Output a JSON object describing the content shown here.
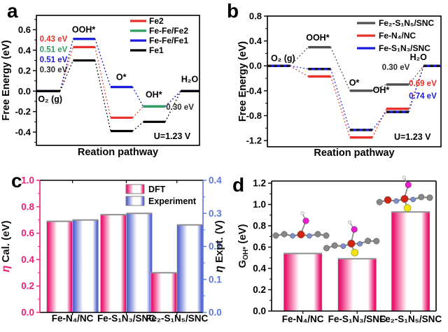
{
  "figure": {
    "panels": [
      {
        "letter": "a"
      },
      {
        "letter": "b"
      },
      {
        "letter": "c"
      },
      {
        "letter": "d"
      }
    ],
    "bar_colors": {
      "pink": "#e9166e",
      "blue": "#5565cf"
    },
    "molecule_atom_colors": {
      "carbon": "#878787",
      "iron": "#d32413",
      "nitrogen": "#7d90cc",
      "sulfur": "#f2e413",
      "oxygen": "#e322c9",
      "hydrogen": "#e8e8e8",
      "bond": "#8a8a8a"
    }
  },
  "chart_data": [
    {
      "panel": "a",
      "type": "line",
      "variant": "energy-diagram",
      "xlabel": "Reation pathway",
      "ylabel": "Free Energy (eV)",
      "ylim": [
        -0.53,
        0.74
      ],
      "yticks": [
        0.6,
        0.4,
        0.2,
        0.0,
        -0.2,
        -0.4
      ],
      "states": [
        "O₂ (g)",
        "OOH*",
        "O*",
        "OH*",
        "H₂O"
      ],
      "series": [
        {
          "name": "Fe2",
          "color": "#e8312a",
          "values": [
            0.0,
            0.43,
            -0.26,
            -0.15,
            0.0
          ]
        },
        {
          "name": "Fe-Fe/Fe2",
          "color": "#2f9e5f",
          "values": [
            0.0,
            0.51,
            0.04,
            -0.15,
            0.0
          ]
        },
        {
          "name": "Fe-Fe/Fe1",
          "color": "#1c1ce0",
          "values": [
            0.0,
            0.51,
            0.04,
            -0.15,
            0.0
          ]
        },
        {
          "name": "Fe1",
          "color": "#000000",
          "values": [
            0.0,
            0.3,
            -0.39,
            -0.3,
            0.0
          ]
        }
      ],
      "top_levels": [
        [
          1,
          3
        ]
      ],
      "annotations": [
        {
          "text": "0.43 eV",
          "color": "#e8312a",
          "xf": 0.02,
          "yv": 0.51,
          "anchor": "start"
        },
        {
          "text": "0.51 eV",
          "color": "#2f9e5f",
          "xf": 0.02,
          "yv": 0.41,
          "anchor": "start"
        },
        {
          "text": "0.51 eV",
          "color": "#1c1ce0",
          "xf": 0.02,
          "yv": 0.31,
          "anchor": "start"
        },
        {
          "text": "0.30 eV",
          "color": "#2b2b2b",
          "xf": 0.02,
          "yv": 0.21,
          "anchor": "start"
        },
        {
          "text": "0.30 eV",
          "color": "#2b2b2b",
          "xf": 0.795,
          "yv": -0.155,
          "anchor": "start"
        },
        {
          "text": "U=1.23 V",
          "color": "#000000",
          "xf": 0.72,
          "yv": -0.44,
          "anchor": "start",
          "fs": 12.5
        }
      ],
      "state_labels": [
        {
          "text": "O₂ (g)",
          "xf": 0.01,
          "yv": -0.08,
          "anchor": "start"
        },
        {
          "text": "OOH*",
          "xf": 0.29,
          "yv": 0.6,
          "anchor": "middle"
        },
        {
          "text": "O*",
          "xf": 0.52,
          "yv": 0.135,
          "anchor": "middle"
        },
        {
          "text": "OH*",
          "xf": 0.72,
          "yv": -0.035,
          "anchor": "middle"
        },
        {
          "text": "H₂O",
          "xf": 0.94,
          "yv": 0.115,
          "anchor": "middle"
        }
      ]
    },
    {
      "panel": "b",
      "type": "line",
      "variant": "energy-diagram",
      "xlabel": "Reation pathway",
      "ylabel": "Free Energy (eV)",
      "ylim": [
        -1.3,
        0.8
      ],
      "yticks": [
        0.8,
        0.4,
        0.0,
        -0.4,
        -0.8,
        -1.2
      ],
      "states": [
        "O₂ (g)",
        "OOH*",
        "O*",
        "OH*",
        "H₂O"
      ],
      "series": [
        {
          "name": "Fe₂-S₁N₅/SNC",
          "color": "#4d4d4d",
          "values": [
            0.0,
            0.3,
            -0.4,
            -0.3,
            0.0
          ]
        },
        {
          "name": "Fe-N₄/NC",
          "color": "#e8312a",
          "values": [
            0.0,
            -0.17,
            -1.15,
            -0.69,
            0.0
          ]
        },
        {
          "name": "Fe-S₁N₃/SNC",
          "color": "#1c1ce0",
          "values": [
            0.0,
            -0.05,
            -1.03,
            -0.74,
            0.0
          ],
          "dash_overlay": "#1a1a1a"
        }
      ],
      "annotations": [
        {
          "text": "0.30 eV",
          "color": "#2b2b2b",
          "xf": 0.66,
          "yv": -0.02,
          "anchor": "start"
        },
        {
          "text": "0.69 eV",
          "color": "#e8312a",
          "xf": 0.815,
          "yv": -0.28,
          "anchor": "start"
        },
        {
          "text": "0.74 eV",
          "color": "#1c1ce0",
          "xf": 0.815,
          "yv": -0.48,
          "anchor": "start"
        },
        {
          "text": "U=1.23 V",
          "color": "#000000",
          "xf": 0.73,
          "yv": -1.14,
          "anchor": "start",
          "fs": 12.5
        }
      ],
      "state_labels": [
        {
          "text": "O₂ (g)",
          "xf": 0.02,
          "yv": 0.12,
          "anchor": "start"
        },
        {
          "text": "OOH*",
          "xf": 0.29,
          "yv": 0.45,
          "anchor": "middle"
        },
        {
          "text": "O*",
          "xf": 0.5,
          "yv": -0.27,
          "anchor": "middle"
        },
        {
          "text": "OH*",
          "xf": 0.655,
          "yv": -0.39,
          "anchor": "middle"
        },
        {
          "text": "H₂O",
          "xf": 0.87,
          "yv": 0.14,
          "anchor": "middle"
        }
      ]
    },
    {
      "panel": "c",
      "type": "bar",
      "categories": [
        "Fe-N₄/NC",
        "Fe-S₁N₃/SNC",
        "Fe₂-S₁N₅/SNC"
      ],
      "left_axis": {
        "color": "#ed1c74",
        "lim": [
          0,
          1.0
        ],
        "ticks": [
          0.0,
          0.2,
          0.4,
          0.6,
          0.8,
          1.0
        ],
        "label_parts": [
          {
            "t": "η",
            "italic": true,
            "fill": "#ed1c74",
            "size": 16
          },
          {
            "t": " Cal. (eV)",
            "fill": "#111111"
          }
        ]
      },
      "right_axis": {
        "color": "#5b76dd",
        "lim": [
          0,
          0.4
        ],
        "ticks": [
          0.0,
          0.1,
          0.2,
          0.3,
          0.4
        ],
        "label_parts": [
          {
            "t": "η",
            "italic": true,
            "fill": "#111111",
            "size": 16
          },
          {
            "t": " Expt. (V)",
            "fill": "#111111"
          }
        ]
      },
      "series": [
        {
          "name": "DFT",
          "axis": "left",
          "values": [
            0.69,
            0.74,
            0.3
          ],
          "gradient": "pink"
        },
        {
          "name": "Experiment",
          "axis": "right",
          "values": [
            0.28,
            0.3,
            0.265
          ],
          "gradient": "blue"
        }
      ]
    },
    {
      "panel": "d",
      "type": "bar",
      "categories": [
        "Fe-N₄/NC",
        "Fe-S₁N₃/SNC",
        "Fe₂-S₁N₅/SNC"
      ],
      "left_axis": {
        "color": "#000000",
        "lim": [
          0,
          1.22
        ],
        "ticks": [
          0.0,
          0.2,
          0.4,
          0.6,
          0.8,
          1.0,
          1.2
        ],
        "label_parts": [
          {
            "t": "G",
            "fill": "#111111"
          },
          {
            "t": "OH*",
            "size": 10,
            "dy": 3,
            "fill": "#111111"
          },
          {
            "t": " (eV)",
            "dy": -3,
            "fill": "#111111"
          }
        ]
      },
      "series": [
        {
          "name": "GOH*",
          "axis": "left",
          "values": [
            0.54,
            0.49,
            0.93
          ],
          "gradient": "pink"
        }
      ],
      "molecule_insets": 3
    }
  ]
}
